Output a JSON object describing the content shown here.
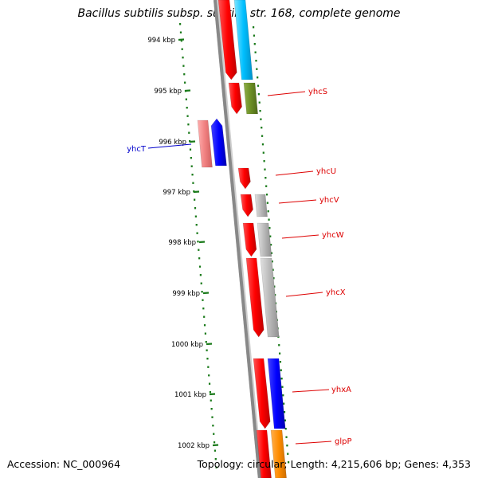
{
  "title": "Bacillus subtilis subsp. subtilis str. 168, complete genome",
  "footer": {
    "accession": "Accession: NC_000964",
    "summary": "Topology: circular; Length: 4,215,606 bp; Genes: 4,353"
  },
  "colors": {
    "backbone": "#888888",
    "tick": "#1a7a1a",
    "label_forward": "#dd0000",
    "label_reverse": "#0000cc"
  },
  "scale_ticks": [
    "994 kbp",
    "995 kbp",
    "996 kbp",
    "997 kbp",
    "998 kbp",
    "999 kbp",
    "1000 kbp",
    "1001 kbp",
    "1002 kbp"
  ],
  "genes": [
    {
      "name": "yhcS",
      "strand": "forward",
      "track_colors": [
        "#ff0000",
        "#6b8e23"
      ]
    },
    {
      "name": "yhcT",
      "strand": "reverse",
      "track_colors": [
        "#f08080",
        "#0000ff"
      ]
    },
    {
      "name": "yhcU",
      "strand": "forward",
      "track_colors": [
        "#ff0000"
      ]
    },
    {
      "name": "yhcV",
      "strand": "forward",
      "track_colors": [
        "#ff0000",
        "#b8b8b8"
      ]
    },
    {
      "name": "yhcW",
      "strand": "forward",
      "track_colors": [
        "#ff0000",
        "#b8b8b8"
      ]
    },
    {
      "name": "yhcX",
      "strand": "forward",
      "track_colors": [
        "#ff0000",
        "#b8b8b8"
      ]
    },
    {
      "name": "yhxA",
      "strand": "forward",
      "track_colors": [
        "#ff0000",
        "#0000ff"
      ]
    },
    {
      "name": "glpP",
      "strand": "forward",
      "track_colors": [
        "#ff0000",
        "#ff8c00"
      ]
    }
  ]
}
